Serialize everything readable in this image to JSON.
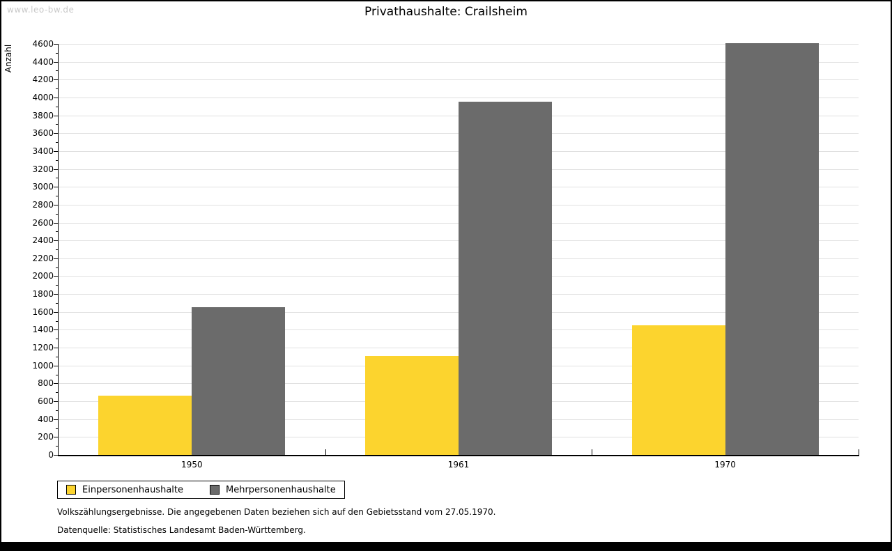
{
  "watermark": "www.leo-bw.de",
  "title": "Privathaushalte: Crailsheim",
  "chart_data": {
    "type": "bar",
    "title": "Privathaushalte: Crailsheim",
    "categories": [
      "1950",
      "1961",
      "1970"
    ],
    "series": [
      {
        "name": "Einpersonenhaushalte",
        "color": "#fcd42e",
        "values": [
          660,
          1110,
          1450
        ]
      },
      {
        "name": "Mehrpersonenhaushalte",
        "color": "#6b6b6b",
        "values": [
          1655,
          3950,
          4610
        ]
      }
    ],
    "xlabel": "",
    "ylabel": "Anzahl",
    "ylim": [
      0,
      4600
    ],
    "ytick_step": 200,
    "minor_tick_step": 100,
    "grid": true,
    "gridline_color": "#e0e0e0",
    "legend_position": "bottom-left"
  },
  "footnotes": [
    "Volkszählungsergebnisse. Die angegebenen Daten beziehen sich auf den Gebietsstand vom 27.05.1970.",
    "Datenquelle: Statistisches Landesamt Baden-Württemberg."
  ]
}
